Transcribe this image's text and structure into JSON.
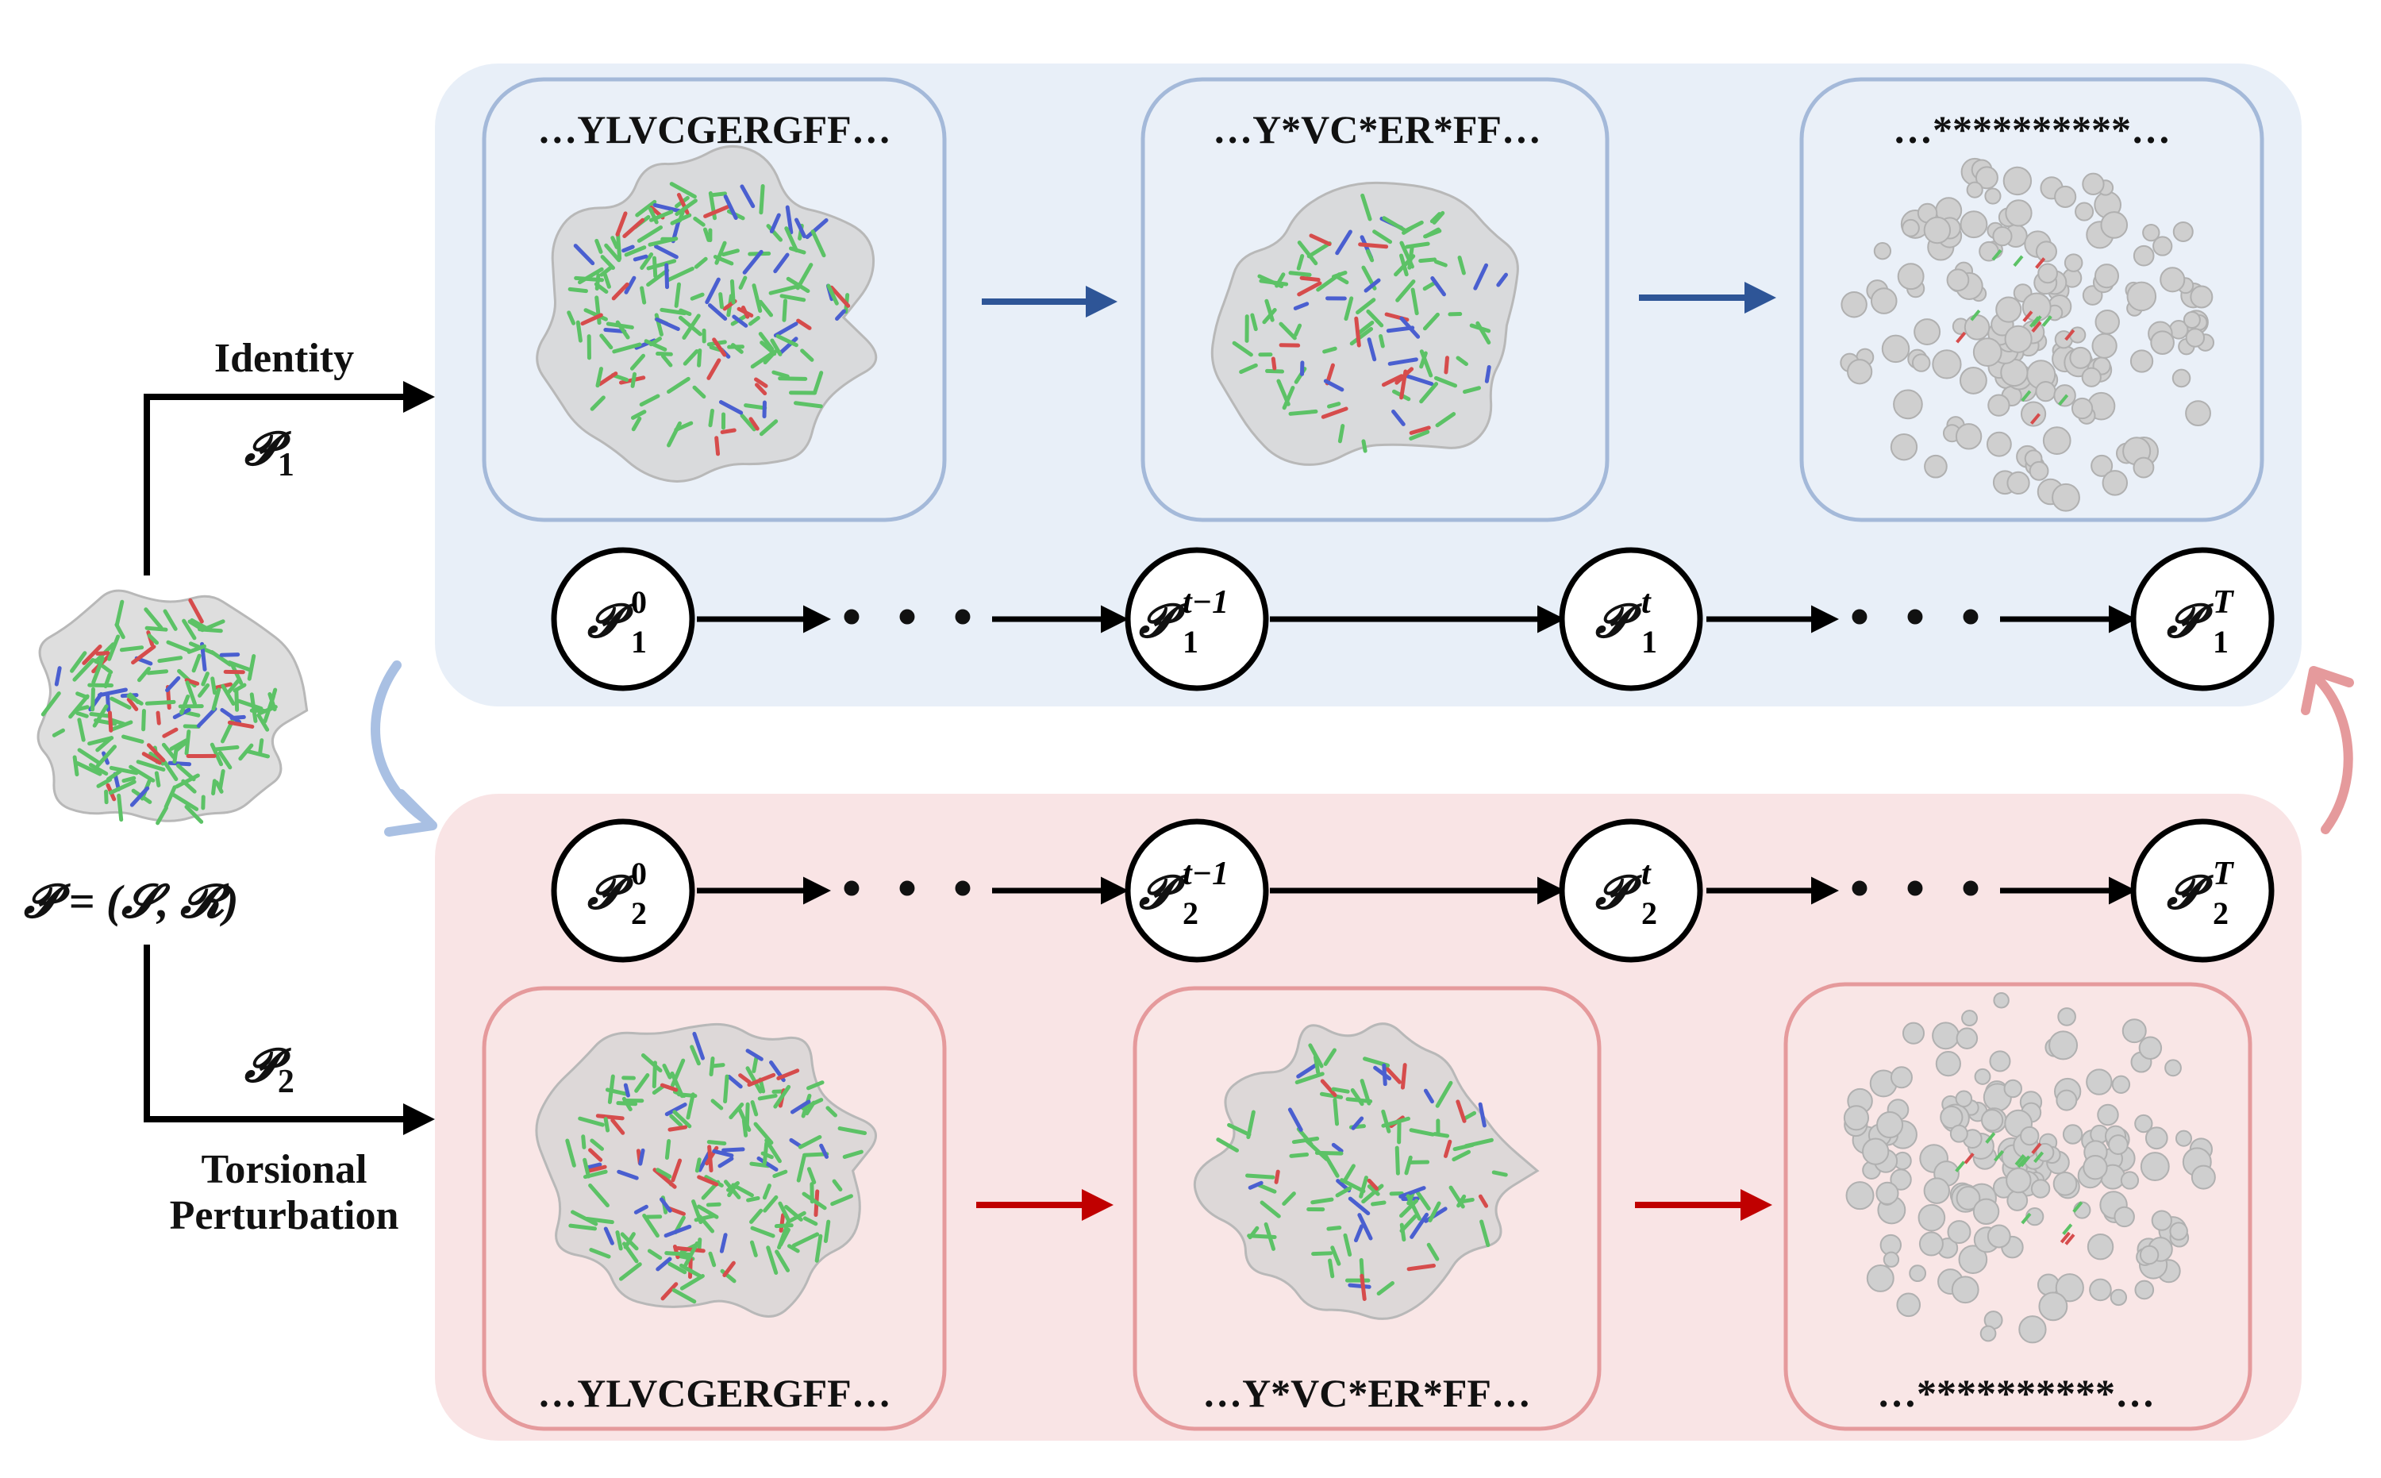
{
  "input": {
    "equation": "𝓟 = (𝓢, 𝓡)"
  },
  "branches": {
    "top": {
      "name": "Identity",
      "symbol": "𝓟",
      "subscript": "1",
      "sequences": [
        "…YLVCGERGFF…",
        "…Y*VC*ER*FF…",
        "…**********…"
      ],
      "nodes": [
        {
          "sup": "0",
          "sub": "1"
        },
        {
          "sup": "t−1",
          "sub": "1"
        },
        {
          "sup": "t",
          "sub": "1"
        },
        {
          "sup": "T",
          "sub": "1"
        }
      ],
      "ellipsis": "• • •",
      "arrow_color": "#2e5597",
      "panel_color": "#e8eff8",
      "box_border": "#a4b9d9"
    },
    "bottom": {
      "name_line1": "Torsional",
      "name_line2": "Perturbation",
      "symbol": "𝓟",
      "subscript": "2",
      "sequences": [
        "…YLVCGERGFF…",
        "…Y*VC*ER*FF…",
        "…**********…"
      ],
      "nodes": [
        {
          "sup": "0",
          "sub": "2"
        },
        {
          "sup": "t−1",
          "sub": "2"
        },
        {
          "sup": "t",
          "sub": "2"
        },
        {
          "sup": "T",
          "sub": "2"
        }
      ],
      "ellipsis": "• • •",
      "arrow_color": "#c00000",
      "panel_color": "#f9e4e5",
      "box_border": "#e59a9c"
    }
  },
  "icons": {
    "protein": "protein-structure-icon",
    "noised": "noised-protein-icon",
    "cycle_blue": "curved-arrow-blue-icon",
    "cycle_red": "curved-arrow-red-icon"
  }
}
